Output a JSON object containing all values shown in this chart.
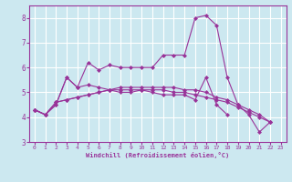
{
  "xlabel": "Windchill (Refroidissement éolien,°C)",
  "x": [
    0,
    1,
    2,
    3,
    4,
    5,
    6,
    7,
    8,
    9,
    10,
    11,
    12,
    13,
    14,
    15,
    16,
    17,
    18,
    19,
    20,
    21,
    22,
    23
  ],
  "line1": [
    4.3,
    4.1,
    4.5,
    5.6,
    5.2,
    6.2,
    5.9,
    6.1,
    6.0,
    6.0,
    6.0,
    6.0,
    6.5,
    6.5,
    6.5,
    8.0,
    8.1,
    7.7,
    5.6,
    4.5,
    4.1,
    3.4,
    3.8,
    null
  ],
  "line2": [
    4.3,
    4.1,
    4.5,
    5.6,
    5.2,
    5.3,
    5.2,
    5.1,
    5.0,
    5.0,
    5.1,
    5.0,
    4.9,
    4.9,
    4.9,
    4.7,
    5.6,
    4.5,
    4.1,
    null,
    null,
    null,
    null,
    null
  ],
  "line3": [
    4.3,
    4.1,
    4.6,
    4.7,
    4.8,
    4.9,
    5.0,
    5.1,
    5.1,
    5.1,
    5.1,
    5.1,
    5.1,
    5.0,
    5.0,
    4.9,
    4.8,
    4.7,
    4.6,
    4.4,
    4.2,
    4.0,
    3.8,
    null
  ],
  "line4": [
    4.3,
    4.1,
    4.6,
    4.7,
    4.8,
    4.9,
    5.0,
    5.1,
    5.2,
    5.2,
    5.2,
    5.2,
    5.2,
    5.2,
    5.1,
    5.1,
    5.0,
    4.8,
    4.7,
    4.5,
    4.3,
    4.1,
    3.8,
    null
  ],
  "line_color": "#993399",
  "bg_color": "#cce8f0",
  "grid_color": "#ffffff",
  "ylim": [
    3.0,
    8.5
  ],
  "xlim": [
    -0.5,
    23.5
  ],
  "yticks": [
    3,
    4,
    5,
    6,
    7,
    8
  ],
  "xticks": [
    0,
    1,
    2,
    3,
    4,
    5,
    6,
    7,
    8,
    9,
    10,
    11,
    12,
    13,
    14,
    15,
    16,
    17,
    18,
    19,
    20,
    21,
    22,
    23
  ]
}
